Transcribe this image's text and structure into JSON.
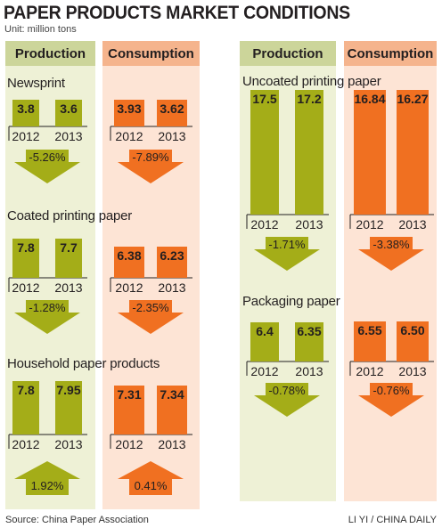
{
  "title": "PAPER PRODUCTS MARKET CONDITIONS",
  "unit": "Unit: million tons",
  "column_headers": {
    "production": "Production",
    "consumption": "Consumption"
  },
  "colors": {
    "production_bar": "#a4ad18",
    "consumption_bar": "#f07021",
    "production_bg": "#eef1d6",
    "consumption_bg": "#fde4d5",
    "production_header": "#ccd59a",
    "consumption_header": "#f5b48d",
    "production_arrow": "#a4ad18",
    "consumption_arrow": "#f07021"
  },
  "source": "Source:  China Paper Association",
  "credit": "LI YI / CHINA DAILY",
  "chart_data": [
    {
      "type": "bar",
      "title": "Newsprint",
      "categories": [
        "2012",
        "2013"
      ],
      "series": [
        {
          "name": "Production",
          "values": [
            3.8,
            3.6
          ],
          "labels": [
            "3.8",
            "3.6"
          ],
          "change": "-5.26%",
          "direction": "down"
        },
        {
          "name": "Consumption",
          "values": [
            3.93,
            3.62
          ],
          "labels": [
            "3.93",
            "3.62"
          ],
          "change": "-7.89%",
          "direction": "down"
        }
      ]
    },
    {
      "type": "bar",
      "title": "Coated printing paper",
      "categories": [
        "2012",
        "2013"
      ],
      "series": [
        {
          "name": "Production",
          "values": [
            7.8,
            7.7
          ],
          "labels": [
            "7.8",
            "7.7"
          ],
          "change": "-1.28%",
          "direction": "down"
        },
        {
          "name": "Consumption",
          "values": [
            6.38,
            6.23
          ],
          "labels": [
            "6.38",
            "6.23"
          ],
          "change": "-2.35%",
          "direction": "down"
        }
      ]
    },
    {
      "type": "bar",
      "title": "Household paper products",
      "categories": [
        "2012",
        "2013"
      ],
      "series": [
        {
          "name": "Production",
          "values": [
            7.8,
            7.95
          ],
          "labels": [
            "7.8",
            "7.95"
          ],
          "change": "1.92%",
          "direction": "up"
        },
        {
          "name": "Consumption",
          "values": [
            7.31,
            7.34
          ],
          "labels": [
            "7.31",
            "7.34"
          ],
          "change": "0.41%",
          "direction": "up"
        }
      ]
    },
    {
      "type": "bar",
      "title": "Uncoated printing paper",
      "categories": [
        "2012",
        "2013"
      ],
      "series": [
        {
          "name": "Production",
          "values": [
            17.5,
            17.2
          ],
          "labels": [
            "17.5",
            "17.2"
          ],
          "change": "-1.71%",
          "direction": "down"
        },
        {
          "name": "Consumption",
          "values": [
            16.84,
            16.27
          ],
          "labels": [
            "16.84",
            "16.27"
          ],
          "change": "-3.38%",
          "direction": "down"
        }
      ]
    },
    {
      "type": "bar",
      "title": "Packaging paper",
      "categories": [
        "2012",
        "2013"
      ],
      "series": [
        {
          "name": "Production",
          "values": [
            6.4,
            6.35
          ],
          "labels": [
            "6.4",
            "6.35"
          ],
          "change": "-0.78%",
          "direction": "down"
        },
        {
          "name": "Consumption",
          "values": [
            6.55,
            6.5
          ],
          "labels": [
            "6.55",
            "6.50"
          ],
          "change": "-0.76%",
          "direction": "down"
        }
      ]
    }
  ]
}
